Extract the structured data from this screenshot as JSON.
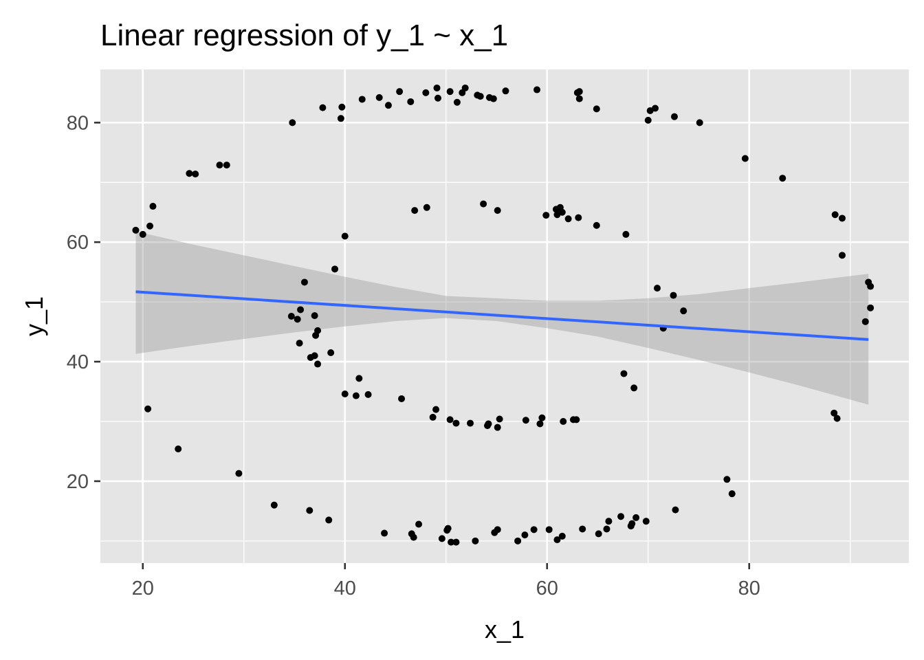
{
  "chart_data": {
    "type": "scatter",
    "title": "Linear regression of y_1 ~ x_1",
    "xlabel": "x_1",
    "ylabel": "y_1",
    "xlim": [
      15.8,
      95.8
    ],
    "ylim": [
      6.3,
      88.9
    ],
    "x_ticks": [
      20,
      40,
      60,
      80
    ],
    "y_ticks": [
      20,
      40,
      60,
      80
    ],
    "x_minor": [
      30,
      50,
      70,
      90
    ],
    "y_minor": [
      10,
      30,
      50,
      70
    ],
    "grid": true,
    "panel_background": "#e5e5e5",
    "point_color": "#000000",
    "line_color": "#3366ff",
    "band_color": "#999999",
    "regression": {
      "x_start": 19.3,
      "y_start": 51.7,
      "x_end": 91.8,
      "y_end": 43.7
    },
    "confidence_band": [
      {
        "x": 19.3,
        "lower": 41.3,
        "upper": 61.8
      },
      {
        "x": 25,
        "lower": 42.7,
        "upper": 59.6
      },
      {
        "x": 30,
        "lower": 43.8,
        "upper": 57.8
      },
      {
        "x": 35,
        "lower": 44.9,
        "upper": 56.0
      },
      {
        "x": 40,
        "lower": 45.9,
        "upper": 54.2
      },
      {
        "x": 45,
        "lower": 46.8,
        "upper": 52.5
      },
      {
        "x": 50,
        "lower": 47.3,
        "upper": 51.0
      },
      {
        "x": 55,
        "lower": 46.8,
        "upper": 50.6
      },
      {
        "x": 60,
        "lower": 45.6,
        "upper": 50.2
      },
      {
        "x": 65,
        "lower": 44.2,
        "upper": 50.2
      },
      {
        "x": 70,
        "lower": 42.3,
        "upper": 50.6
      },
      {
        "x": 75,
        "lower": 40.3,
        "upper": 51.3
      },
      {
        "x": 80,
        "lower": 38.2,
        "upper": 52.3
      },
      {
        "x": 85,
        "lower": 36.0,
        "upper": 53.3
      },
      {
        "x": 91.8,
        "lower": 32.8,
        "upper": 54.7
      }
    ],
    "points": [
      {
        "x": 19.3,
        "y": 62.0
      },
      {
        "x": 20.0,
        "y": 61.3
      },
      {
        "x": 20.7,
        "y": 62.7
      },
      {
        "x": 21.0,
        "y": 66.0
      },
      {
        "x": 24.6,
        "y": 71.5
      },
      {
        "x": 25.2,
        "y": 71.4
      },
      {
        "x": 27.6,
        "y": 72.9
      },
      {
        "x": 28.3,
        "y": 72.9
      },
      {
        "x": 34.8,
        "y": 80.0
      },
      {
        "x": 37.8,
        "y": 82.5
      },
      {
        "x": 39.6,
        "y": 80.7
      },
      {
        "x": 39.7,
        "y": 82.6
      },
      {
        "x": 41.7,
        "y": 83.9
      },
      {
        "x": 43.4,
        "y": 84.2
      },
      {
        "x": 44.3,
        "y": 82.9
      },
      {
        "x": 45.4,
        "y": 85.2
      },
      {
        "x": 46.5,
        "y": 83.5
      },
      {
        "x": 48.0,
        "y": 85.0
      },
      {
        "x": 49.1,
        "y": 85.8
      },
      {
        "x": 49.2,
        "y": 84.1
      },
      {
        "x": 50.4,
        "y": 85.2
      },
      {
        "x": 51.1,
        "y": 83.4
      },
      {
        "x": 51.6,
        "y": 85.0
      },
      {
        "x": 51.9,
        "y": 85.8
      },
      {
        "x": 53.1,
        "y": 84.6
      },
      {
        "x": 53.4,
        "y": 84.4
      },
      {
        "x": 54.3,
        "y": 84.2
      },
      {
        "x": 54.7,
        "y": 84.0
      },
      {
        "x": 55.9,
        "y": 85.3
      },
      {
        "x": 59.0,
        "y": 85.5
      },
      {
        "x": 63.0,
        "y": 85.0
      },
      {
        "x": 63.2,
        "y": 85.2
      },
      {
        "x": 63.2,
        "y": 84.0
      },
      {
        "x": 64.9,
        "y": 82.3
      },
      {
        "x": 70.0,
        "y": 80.4
      },
      {
        "x": 70.2,
        "y": 82.0
      },
      {
        "x": 70.7,
        "y": 82.4
      },
      {
        "x": 72.6,
        "y": 81.0
      },
      {
        "x": 75.1,
        "y": 80.0
      },
      {
        "x": 79.6,
        "y": 74.0
      },
      {
        "x": 83.3,
        "y": 70.7
      },
      {
        "x": 88.5,
        "y": 64.6
      },
      {
        "x": 89.2,
        "y": 64.0
      },
      {
        "x": 89.2,
        "y": 57.8
      },
      {
        "x": 91.5,
        "y": 46.7
      },
      {
        "x": 91.8,
        "y": 53.3
      },
      {
        "x": 92.0,
        "y": 52.6
      },
      {
        "x": 92.0,
        "y": 49.0
      },
      {
        "x": 88.4,
        "y": 31.4
      },
      {
        "x": 88.7,
        "y": 30.5
      },
      {
        "x": 78.3,
        "y": 17.9
      },
      {
        "x": 77.8,
        "y": 20.3
      },
      {
        "x": 72.7,
        "y": 15.2
      },
      {
        "x": 69.8,
        "y": 13.3
      },
      {
        "x": 68.8,
        "y": 13.9
      },
      {
        "x": 68.4,
        "y": 12.9
      },
      {
        "x": 68.3,
        "y": 12.5
      },
      {
        "x": 67.3,
        "y": 14.1
      },
      {
        "x": 66.1,
        "y": 13.3
      },
      {
        "x": 65.9,
        "y": 12.0
      },
      {
        "x": 65.1,
        "y": 11.2
      },
      {
        "x": 63.5,
        "y": 12.0
      },
      {
        "x": 61.5,
        "y": 10.8
      },
      {
        "x": 61.0,
        "y": 10.2
      },
      {
        "x": 60.2,
        "y": 11.9
      },
      {
        "x": 58.7,
        "y": 11.9
      },
      {
        "x": 57.8,
        "y": 11.0
      },
      {
        "x": 57.1,
        "y": 10.0
      },
      {
        "x": 55.1,
        "y": 11.9
      },
      {
        "x": 54.8,
        "y": 11.4
      },
      {
        "x": 52.9,
        "y": 10.0
      },
      {
        "x": 51.0,
        "y": 9.8
      },
      {
        "x": 50.5,
        "y": 9.8
      },
      {
        "x": 50.2,
        "y": 12.1
      },
      {
        "x": 50.1,
        "y": 11.8
      },
      {
        "x": 49.6,
        "y": 10.4
      },
      {
        "x": 47.3,
        "y": 12.8
      },
      {
        "x": 46.8,
        "y": 10.6
      },
      {
        "x": 46.6,
        "y": 11.2
      },
      {
        "x": 43.9,
        "y": 11.3
      },
      {
        "x": 38.4,
        "y": 13.5
      },
      {
        "x": 36.5,
        "y": 15.1
      },
      {
        "x": 33.0,
        "y": 16.0
      },
      {
        "x": 29.5,
        "y": 21.3
      },
      {
        "x": 23.5,
        "y": 25.4
      },
      {
        "x": 20.5,
        "y": 32.1
      },
      {
        "x": 34.7,
        "y": 47.6
      },
      {
        "x": 35.3,
        "y": 47.1
      },
      {
        "x": 35.5,
        "y": 43.1
      },
      {
        "x": 35.6,
        "y": 48.7
      },
      {
        "x": 36.0,
        "y": 53.3
      },
      {
        "x": 36.6,
        "y": 40.7
      },
      {
        "x": 37.0,
        "y": 41.0
      },
      {
        "x": 37.0,
        "y": 47.7
      },
      {
        "x": 37.1,
        "y": 44.4
      },
      {
        "x": 37.3,
        "y": 45.2
      },
      {
        "x": 37.3,
        "y": 39.6
      },
      {
        "x": 38.6,
        "y": 41.5
      },
      {
        "x": 39.0,
        "y": 55.5
      },
      {
        "x": 40.0,
        "y": 61.0
      },
      {
        "x": 40.0,
        "y": 34.6
      },
      {
        "x": 41.1,
        "y": 34.3
      },
      {
        "x": 41.4,
        "y": 37.2
      },
      {
        "x": 42.3,
        "y": 34.5
      },
      {
        "x": 45.6,
        "y": 33.8
      },
      {
        "x": 46.9,
        "y": 65.3
      },
      {
        "x": 48.1,
        "y": 65.8
      },
      {
        "x": 48.7,
        "y": 30.7
      },
      {
        "x": 49.0,
        "y": 32.0
      },
      {
        "x": 50.4,
        "y": 30.3
      },
      {
        "x": 51.0,
        "y": 29.7
      },
      {
        "x": 52.4,
        "y": 29.7
      },
      {
        "x": 53.7,
        "y": 66.4
      },
      {
        "x": 54.1,
        "y": 29.3
      },
      {
        "x": 54.2,
        "y": 29.6
      },
      {
        "x": 55.1,
        "y": 65.3
      },
      {
        "x": 55.1,
        "y": 29.0
      },
      {
        "x": 55.3,
        "y": 30.4
      },
      {
        "x": 57.9,
        "y": 30.2
      },
      {
        "x": 59.3,
        "y": 29.6
      },
      {
        "x": 59.5,
        "y": 30.6
      },
      {
        "x": 59.9,
        "y": 64.5
      },
      {
        "x": 60.9,
        "y": 65.5
      },
      {
        "x": 61.0,
        "y": 64.6
      },
      {
        "x": 61.3,
        "y": 65.8
      },
      {
        "x": 61.5,
        "y": 65.0
      },
      {
        "x": 61.6,
        "y": 30.0
      },
      {
        "x": 62.1,
        "y": 63.9
      },
      {
        "x": 62.6,
        "y": 30.3
      },
      {
        "x": 62.9,
        "y": 30.3
      },
      {
        "x": 63.1,
        "y": 64.1
      },
      {
        "x": 64.9,
        "y": 62.8
      },
      {
        "x": 67.6,
        "y": 38.0
      },
      {
        "x": 67.8,
        "y": 61.3
      },
      {
        "x": 68.6,
        "y": 35.6
      },
      {
        "x": 70.9,
        "y": 52.3
      },
      {
        "x": 71.5,
        "y": 45.6
      },
      {
        "x": 72.5,
        "y": 51.1
      },
      {
        "x": 73.5,
        "y": 48.5
      }
    ]
  }
}
